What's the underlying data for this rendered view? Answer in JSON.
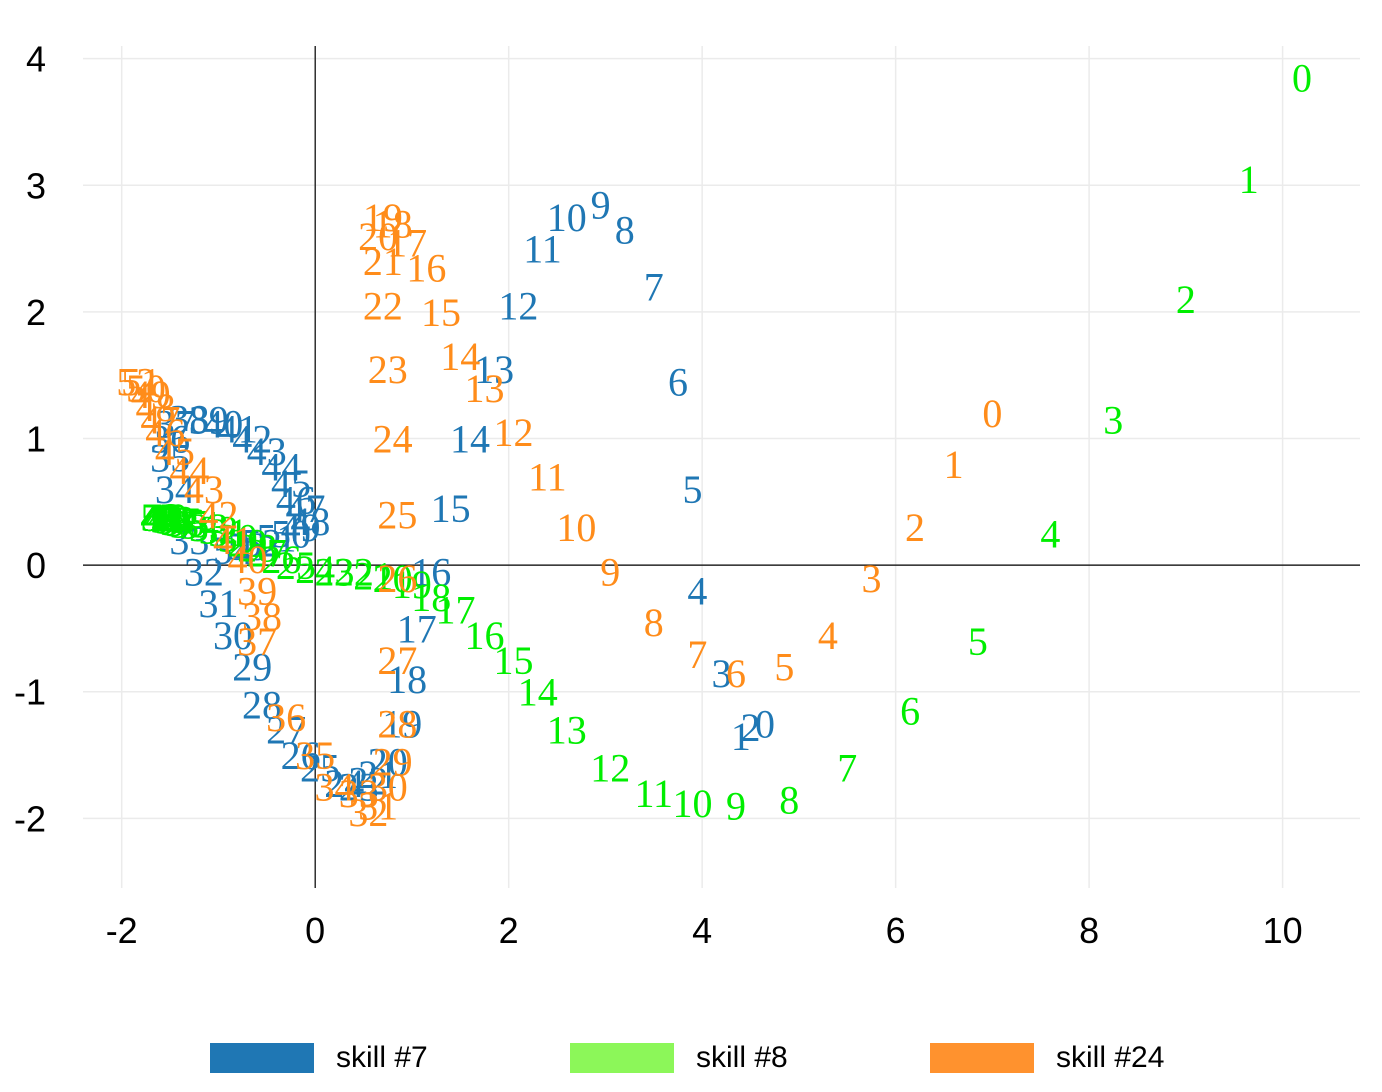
{
  "chart_data": {
    "type": "scatter",
    "title": "",
    "xlabel": "",
    "ylabel": "",
    "xlim": [
      -2.4,
      10.8
    ],
    "ylim": [
      -2.55,
      4.1
    ],
    "x_ticks": [
      -2,
      0,
      2,
      4,
      6,
      8,
      10
    ],
    "x_tick_labels": [
      "-2",
      "0",
      "2",
      "4",
      "6",
      "8",
      "10"
    ],
    "y_ticks": [
      4,
      3,
      2,
      1,
      0,
      -1,
      -2
    ],
    "y_tick_labels": [
      "4",
      "3",
      "2",
      "1",
      "0",
      "-1",
      "-2"
    ],
    "grid": true,
    "zero_lines": true,
    "legend_position": "bottom",
    "point_label_kind": "index",
    "series": [
      {
        "name": "skill #7",
        "color": "#1f77b4",
        "points": [
          [
            4.65,
            -1.25
          ],
          [
            4.4,
            -1.35
          ],
          [
            4.5,
            -1.28
          ],
          [
            4.2,
            -0.85
          ],
          [
            3.95,
            -0.2
          ],
          [
            3.9,
            0.6
          ],
          [
            3.75,
            1.45
          ],
          [
            3.5,
            2.2
          ],
          [
            3.2,
            2.65
          ],
          [
            2.95,
            2.85
          ],
          [
            2.6,
            2.75
          ],
          [
            2.35,
            2.5
          ],
          [
            2.1,
            2.05
          ],
          [
            1.85,
            1.55
          ],
          [
            1.6,
            1.0
          ],
          [
            1.4,
            0.45
          ],
          [
            1.2,
            -0.05
          ],
          [
            1.05,
            -0.5
          ],
          [
            0.95,
            -0.9
          ],
          [
            0.9,
            -1.25
          ],
          [
            0.75,
            -1.55
          ],
          [
            0.65,
            -1.65
          ],
          [
            0.55,
            -1.7
          ],
          [
            0.45,
            -1.75
          ],
          [
            0.3,
            -1.72
          ],
          [
            0.05,
            -1.6
          ],
          [
            -0.15,
            -1.5
          ],
          [
            -0.3,
            -1.3
          ],
          [
            -0.55,
            -1.1
          ],
          [
            -0.65,
            -0.8
          ],
          [
            -0.85,
            -0.55
          ],
          [
            -1.0,
            -0.3
          ],
          [
            -1.15,
            -0.05
          ],
          [
            -1.3,
            0.2
          ],
          [
            -1.45,
            0.6
          ],
          [
            -1.5,
            0.85
          ],
          [
            -1.5,
            1.0
          ],
          [
            -1.45,
            1.12
          ],
          [
            -1.3,
            1.16
          ],
          [
            -1.1,
            1.15
          ],
          [
            -0.95,
            1.12
          ],
          [
            -0.8,
            1.08
          ],
          [
            -0.65,
            1.0
          ],
          [
            -0.5,
            0.9
          ],
          [
            -0.35,
            0.78
          ],
          [
            -0.25,
            0.65
          ],
          [
            -0.2,
            0.52
          ],
          [
            -0.1,
            0.45
          ],
          [
            -0.05,
            0.35
          ],
          [
            -0.15,
            0.3
          ],
          [
            -0.25,
            0.25
          ],
          [
            -0.4,
            0.22
          ],
          [
            -0.55,
            0.18
          ],
          [
            -0.7,
            0.15
          ],
          [
            -0.85,
            0.12
          ]
        ]
      },
      {
        "name": "skill #8",
        "color": "#00ee00",
        "points": [
          [
            10.2,
            3.85
          ],
          [
            9.65,
            3.05
          ],
          [
            9.0,
            2.1
          ],
          [
            8.25,
            1.15
          ],
          [
            7.6,
            0.25
          ],
          [
            6.85,
            -0.6
          ],
          [
            6.15,
            -1.15
          ],
          [
            5.5,
            -1.6
          ],
          [
            4.9,
            -1.85
          ],
          [
            4.35,
            -1.9
          ],
          [
            3.9,
            -1.88
          ],
          [
            3.5,
            -1.8
          ],
          [
            3.05,
            -1.6
          ],
          [
            2.6,
            -1.3
          ],
          [
            2.3,
            -1.0
          ],
          [
            2.05,
            -0.75
          ],
          [
            1.75,
            -0.55
          ],
          [
            1.45,
            -0.35
          ],
          [
            1.2,
            -0.25
          ],
          [
            1.0,
            -0.15
          ],
          [
            0.8,
            -0.1
          ],
          [
            0.6,
            -0.08
          ],
          [
            0.4,
            -0.05
          ],
          [
            0.2,
            -0.05
          ],
          [
            0.0,
            -0.03
          ],
          [
            -0.2,
            0.0
          ],
          [
            -0.35,
            0.05
          ],
          [
            -0.5,
            0.1
          ],
          [
            -0.6,
            0.14
          ],
          [
            -0.7,
            0.18
          ],
          [
            -0.8,
            0.22
          ],
          [
            -0.9,
            0.26
          ],
          [
            -1.0,
            0.28
          ],
          [
            -1.1,
            0.3
          ],
          [
            -1.2,
            0.32
          ],
          [
            -1.3,
            0.33
          ],
          [
            -1.35,
            0.34
          ],
          [
            -1.4,
            0.35
          ],
          [
            -1.45,
            0.36
          ],
          [
            -1.5,
            0.37
          ],
          [
            -1.52,
            0.38
          ],
          [
            -1.55,
            0.38
          ],
          [
            -1.57,
            0.38
          ],
          [
            -1.58,
            0.38
          ],
          [
            -1.59,
            0.38
          ],
          [
            -1.6,
            0.38
          ],
          [
            -1.6,
            0.38
          ],
          [
            -1.6,
            0.38
          ],
          [
            -1.6,
            0.38
          ],
          [
            -1.6,
            0.38
          ],
          [
            -1.6,
            0.38
          ],
          [
            -1.6,
            0.38
          ],
          [
            -1.6,
            0.38
          ],
          [
            -1.6,
            0.38
          ],
          [
            -1.6,
            0.38
          ],
          [
            -1.6,
            0.38
          ]
        ]
      },
      {
        "name": "skill #24",
        "color": "#ff8c1a",
        "points": [
          [
            7.0,
            1.2
          ],
          [
            6.6,
            0.8
          ],
          [
            6.2,
            0.3
          ],
          [
            5.75,
            -0.1
          ],
          [
            5.3,
            -0.55
          ],
          [
            4.85,
            -0.8
          ],
          [
            4.35,
            -0.85
          ],
          [
            3.95,
            -0.7
          ],
          [
            3.5,
            -0.45
          ],
          [
            3.05,
            -0.05
          ],
          [
            2.7,
            0.3
          ],
          [
            2.4,
            0.7
          ],
          [
            2.05,
            1.05
          ],
          [
            1.75,
            1.4
          ],
          [
            1.5,
            1.65
          ],
          [
            1.3,
            2.0
          ],
          [
            1.15,
            2.35
          ],
          [
            0.95,
            2.55
          ],
          [
            0.8,
            2.7
          ],
          [
            0.7,
            2.75
          ],
          [
            0.65,
            2.6
          ],
          [
            0.7,
            2.4
          ],
          [
            0.7,
            2.05
          ],
          [
            0.75,
            1.55
          ],
          [
            0.8,
            1.0
          ],
          [
            0.85,
            0.4
          ],
          [
            0.85,
            -0.1
          ],
          [
            0.85,
            -0.75
          ],
          [
            0.85,
            -1.25
          ],
          [
            0.8,
            -1.55
          ],
          [
            0.75,
            -1.75
          ],
          [
            0.65,
            -1.9
          ],
          [
            0.55,
            -1.95
          ],
          [
            0.45,
            -1.8
          ],
          [
            0.2,
            -1.75
          ],
          [
            0.0,
            -1.5
          ],
          [
            -0.3,
            -1.2
          ],
          [
            -0.6,
            -0.6
          ],
          [
            -0.55,
            -0.4
          ],
          [
            -0.6,
            -0.2
          ],
          [
            -0.7,
            0.05
          ],
          [
            -0.85,
            0.2
          ],
          [
            -1.0,
            0.4
          ],
          [
            -1.15,
            0.6
          ],
          [
            -1.3,
            0.75
          ],
          [
            -1.45,
            0.9
          ],
          [
            -1.55,
            1.05
          ],
          [
            -1.6,
            1.15
          ],
          [
            -1.65,
            1.25
          ],
          [
            -1.7,
            1.35
          ],
          [
            -1.75,
            1.4
          ],
          [
            -1.8,
            1.45
          ],
          [
            -1.85,
            1.45
          ]
        ]
      }
    ]
  },
  "legend": {
    "items": [
      {
        "label": "skill #7",
        "color": "#1f77b4"
      },
      {
        "label": "skill #8",
        "color": "#8cf759"
      },
      {
        "label": "skill #24",
        "color": "#ff922e"
      }
    ]
  }
}
